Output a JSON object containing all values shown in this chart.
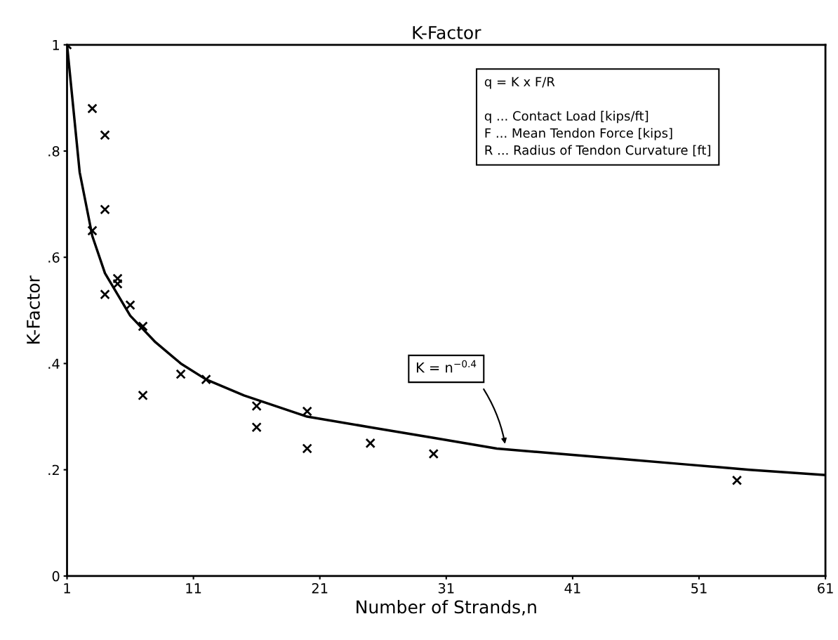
{
  "chart_data": {
    "type": "scatter",
    "title": "K-Factor",
    "xlabel": "Number of Strands,n",
    "ylabel": "K-Factor",
    "xlim": [
      1,
      61
    ],
    "xticks": [
      1,
      11,
      21,
      31,
      41,
      51,
      61
    ],
    "ylim": [
      0,
      1
    ],
    "yticks": [
      0,
      {
        "value": 0.2,
        "label": ".2"
      },
      {
        "value": 0.4,
        "label": ".4"
      },
      {
        "value": 0.6,
        "label": ".6"
      },
      {
        "value": 0.8,
        "label": ".8"
      },
      1
    ],
    "grid": false,
    "legend": false,
    "marker": "cross",
    "series": [
      {
        "color": "#000000",
        "x": [
          1,
          3,
          4,
          4,
          3,
          5,
          5,
          4,
          6,
          7,
          10,
          12,
          7,
          16,
          16,
          20,
          20,
          25,
          30,
          54
        ],
        "values": [
          1.0,
          0.88,
          0.83,
          0.69,
          0.65,
          0.56,
          0.55,
          0.53,
          0.51,
          0.47,
          0.38,
          0.37,
          0.34,
          0.32,
          0.28,
          0.31,
          0.24,
          0.25,
          0.23,
          0.18
        ]
      },
      {
        "type": "line",
        "color": "#000000",
        "marker": "none",
        "line_style": "solid",
        "x": [
          1,
          2,
          3,
          4,
          5,
          6,
          8,
          10,
          12,
          15,
          20,
          25,
          30,
          35,
          40,
          45,
          50,
          55,
          61
        ],
        "values": [
          1.0,
          0.76,
          0.64,
          0.57,
          0.53,
          0.49,
          0.44,
          0.4,
          0.37,
          0.34,
          0.3,
          0.28,
          0.26,
          0.24,
          0.23,
          0.22,
          0.21,
          0.2,
          0.19
        ]
      }
    ],
    "annotations": [
      "q = K x F/R\n\nq ... Contact Load [kips/ft]\nF ... Mean Tendon Force [kips]\nR ... Radius of Tendon Curvature [ft]",
      "K = n$^{−0.4}$"
    ]
  }
}
